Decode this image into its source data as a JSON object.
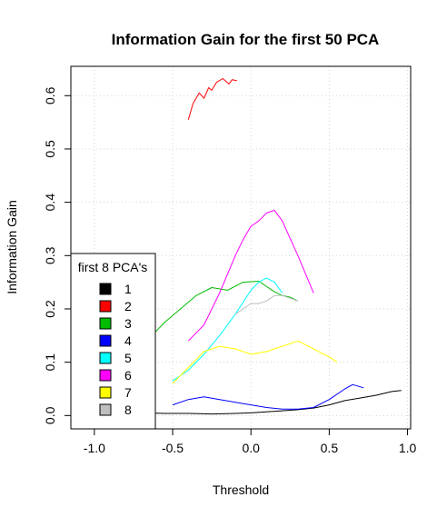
{
  "chart_data": {
    "type": "line",
    "title": "Information Gain for the first 50 PCA",
    "xlabel": "Threshold",
    "ylabel": "Information Gain",
    "xlim": [
      -1.15,
      1.02
    ],
    "ylim": [
      -0.025,
      0.655
    ],
    "x_ticks": [
      -1.0,
      -0.5,
      0.0,
      0.5,
      1.0
    ],
    "x_tick_labels": [
      "-1.0",
      "-0.5",
      "0.0",
      "0.5",
      "1.0"
    ],
    "y_ticks": [
      0.0,
      0.1,
      0.2,
      0.3,
      0.4,
      0.5,
      0.6
    ],
    "y_tick_labels": [
      "0.0",
      "0.1",
      "0.2",
      "0.3",
      "0.4",
      "0.5",
      "0.6"
    ],
    "grid": true,
    "legend": {
      "title": "first 8 PCA's",
      "position": "bottom-left"
    },
    "series": [
      {
        "name": "1",
        "color": "#000000",
        "x": [
          -0.85,
          -0.7,
          -0.55,
          -0.4,
          -0.25,
          -0.1,
          0.0,
          0.1,
          0.2,
          0.3,
          0.4,
          0.5,
          0.6,
          0.7,
          0.8,
          0.9,
          0.96
        ],
        "y": [
          0.004,
          0.005,
          0.004,
          0.004,
          0.003,
          0.004,
          0.005,
          0.007,
          0.009,
          0.011,
          0.014,
          0.02,
          0.028,
          0.033,
          0.038,
          0.045,
          0.047
        ]
      },
      {
        "name": "2",
        "color": "#ff0000",
        "x": [
          -0.4,
          -0.37,
          -0.33,
          -0.3,
          -0.27,
          -0.25,
          -0.22,
          -0.18,
          -0.14,
          -0.12,
          -0.09
        ],
        "y": [
          0.555,
          0.585,
          0.605,
          0.595,
          0.615,
          0.61,
          0.625,
          0.632,
          0.622,
          0.63,
          0.628
        ]
      },
      {
        "name": "3",
        "color": "#00bb00",
        "x": [
          -0.82,
          -0.75,
          -0.65,
          -0.55,
          -0.45,
          -0.35,
          -0.25,
          -0.15,
          -0.05,
          0.05,
          0.15,
          0.2,
          0.25,
          0.3
        ],
        "y": [
          0.1,
          0.115,
          0.145,
          0.175,
          0.2,
          0.225,
          0.24,
          0.235,
          0.25,
          0.252,
          0.232,
          0.225,
          0.222,
          0.215
        ]
      },
      {
        "name": "4",
        "color": "#0000ff",
        "x": [
          -0.5,
          -0.4,
          -0.3,
          -0.2,
          -0.1,
          0.0,
          0.1,
          0.2,
          0.3,
          0.4,
          0.5,
          0.6,
          0.65,
          0.72
        ],
        "y": [
          0.02,
          0.03,
          0.035,
          0.03,
          0.025,
          0.02,
          0.015,
          0.012,
          0.012,
          0.015,
          0.03,
          0.05,
          0.058,
          0.052
        ]
      },
      {
        "name": "5",
        "color": "#00ffff",
        "x": [
          -0.5,
          -0.4,
          -0.3,
          -0.2,
          -0.1,
          0.0,
          0.05,
          0.1,
          0.15,
          0.2
        ],
        "y": [
          0.065,
          0.085,
          0.115,
          0.15,
          0.19,
          0.235,
          0.25,
          0.258,
          0.25,
          0.23
        ]
      },
      {
        "name": "6",
        "color": "#ff00ff",
        "x": [
          -0.4,
          -0.3,
          -0.2,
          -0.1,
          -0.05,
          0.0,
          0.05,
          0.1,
          0.15,
          0.2,
          0.3,
          0.4
        ],
        "y": [
          0.14,
          0.17,
          0.23,
          0.3,
          0.33,
          0.355,
          0.365,
          0.38,
          0.385,
          0.365,
          0.3,
          0.23
        ]
      },
      {
        "name": "7",
        "color": "#ffff00",
        "x": [
          -0.5,
          -0.4,
          -0.3,
          -0.2,
          -0.1,
          0.0,
          0.1,
          0.2,
          0.3,
          0.4,
          0.5,
          0.55
        ],
        "y": [
          0.06,
          0.09,
          0.12,
          0.13,
          0.125,
          0.115,
          0.12,
          0.13,
          0.14,
          0.125,
          0.11,
          0.1
        ]
      },
      {
        "name": "8",
        "color": "#bebebe",
        "x": [
          -0.1,
          -0.05,
          0.0,
          0.05,
          0.1,
          0.15,
          0.2,
          0.25,
          0.3
        ],
        "y": [
          0.19,
          0.2,
          0.21,
          0.21,
          0.215,
          0.225,
          0.225,
          0.22,
          0.215
        ]
      }
    ]
  }
}
